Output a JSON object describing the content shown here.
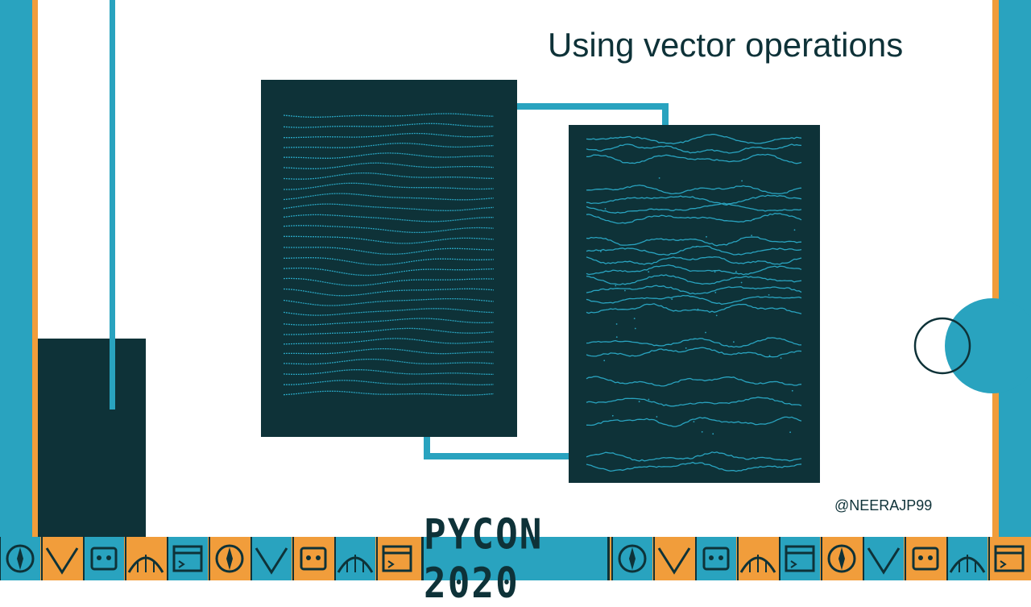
{
  "slide": {
    "title": "Using vector operations",
    "handle": "@NEERAJP99"
  },
  "footer": {
    "logo": "PYCON 2020"
  },
  "colors": {
    "dark_teal": "#0e3238",
    "accent_blue": "#29a3bf",
    "accent_orange": "#f19d3b",
    "background": "#ffffff"
  },
  "icons": [
    "terminal-icon",
    "bird-icon",
    "chevron-icon",
    "leaf-icon",
    "star-icon",
    "building-icon",
    "robot-icon",
    "gears-icon",
    "pan-icon",
    "bridge-icon",
    "window-icon",
    "dollar-icon"
  ]
}
